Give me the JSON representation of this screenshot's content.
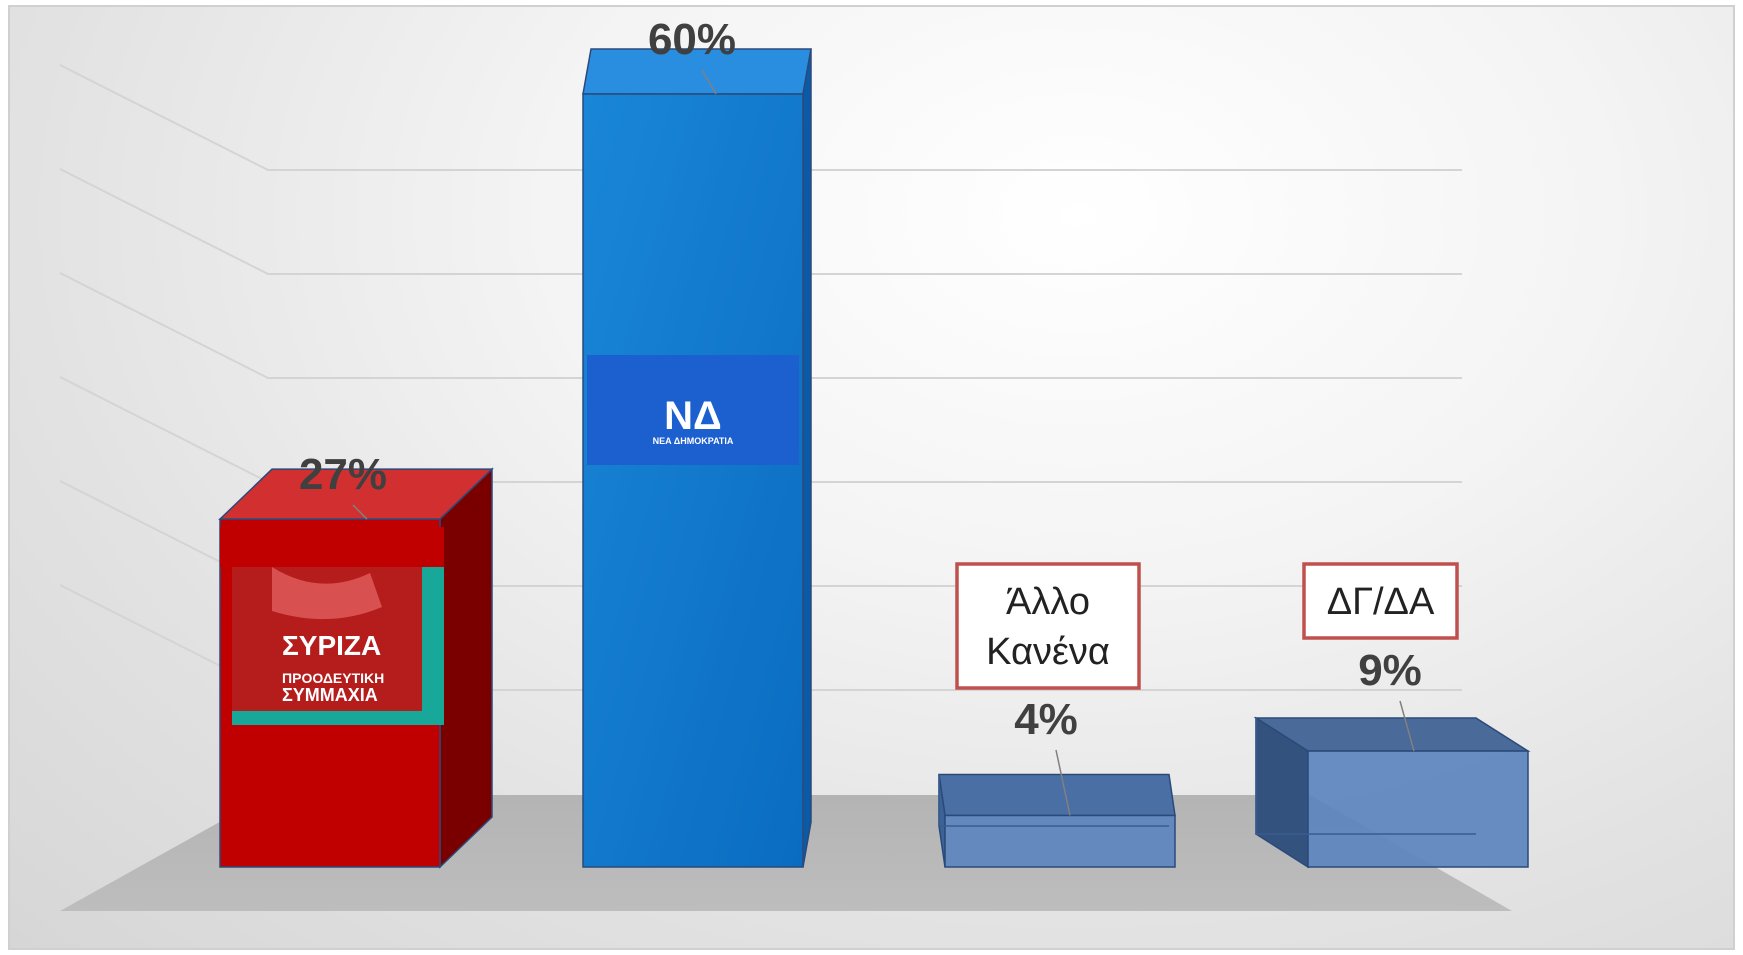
{
  "chart_data": {
    "type": "bar",
    "categories": [
      "ΣΥΡΙΖΑ",
      "ΝΔ",
      "Άλλο Κανένα",
      "ΔΓ/ΔΑ"
    ],
    "values": [
      27,
      60,
      4,
      9
    ],
    "value_labels": [
      "27%",
      "60%",
      "4%",
      "9%"
    ],
    "ylim": [
      0,
      60
    ],
    "grid": true,
    "bar_colors": [
      "#c00000",
      "#0a72c8",
      "#5b84bf",
      "#5b84bf"
    ],
    "category_boxes": [
      {
        "lines": [
          "Άλλο",
          "Κανένα"
        ]
      },
      {
        "lines": [
          "ΔΓ/ΔΑ"
        ]
      }
    ],
    "logos": {
      "syriza": {
        "name": "ΣΥΡΙΖΑ",
        "line1": "ΠΡΟΟΔΕΥΤΙΚΗ",
        "line2": "ΣΥΜΜΑΧΙΑ",
        "color": "#b51c1c"
      },
      "nd": {
        "mark": "ΝΔ",
        "subtitle": "ΝΕΑ ΔΗΜΟΚΡΑΤΙΑ",
        "color": "#1c5fce"
      }
    }
  }
}
